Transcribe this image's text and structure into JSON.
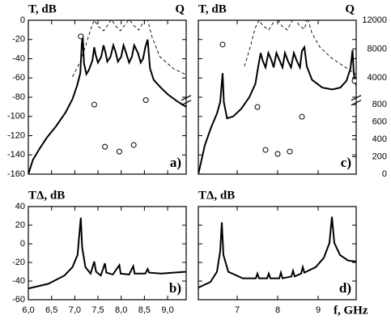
{
  "chart_data": [
    {
      "type": "line",
      "panel_label": "a)",
      "ylabel": "T, dB",
      "y2label": "Q",
      "xlim": [
        6.0,
        9.4
      ],
      "xticks": [
        6,
        6.5,
        7,
        7.5,
        8,
        8.5,
        9
      ],
      "xtick_labels": false,
      "ylim": [
        -160,
        0
      ],
      "yticks": [
        0,
        -20,
        -40,
        -60,
        -80,
        -100,
        -120,
        -140,
        -160
      ],
      "y2lim": [
        0,
        12000
      ],
      "y2break": 850,
      "series": [
        {
          "style": "solid",
          "color": "#000000",
          "x": [
            6.0,
            6.1,
            6.25,
            6.4,
            6.6,
            6.8,
            6.95,
            7.05,
            7.12,
            7.15,
            7.17,
            7.2,
            7.25,
            7.3,
            7.38,
            7.42,
            7.45,
            7.5,
            7.57,
            7.62,
            7.66,
            7.7,
            7.77,
            7.83,
            7.88,
            7.93,
            8.0,
            8.05,
            8.1,
            8.17,
            8.23,
            8.28,
            8.36,
            8.42,
            8.47,
            8.52,
            8.57,
            8.62,
            8.7,
            8.85,
            9.0,
            9.2,
            9.4
          ],
          "values": [
            -160,
            -145,
            -133,
            -122,
            -110,
            -96,
            -82,
            -68,
            -55,
            -25,
            -15,
            -45,
            -56,
            -52,
            -42,
            -28,
            -36,
            -44,
            -38,
            -26,
            -33,
            -43,
            -38,
            -26,
            -33,
            -43,
            -38,
            -26,
            -33,
            -44,
            -38,
            -26,
            -34,
            -44,
            -40,
            -28,
            -20,
            -50,
            -62,
            -70,
            -77,
            -84,
            -90
          ]
        },
        {
          "style": "dashed",
          "axis": "y2",
          "color": "#000000",
          "x": [
            6.95,
            7.13,
            7.27,
            7.35,
            7.42,
            7.51,
            7.62,
            7.72,
            7.79,
            7.88,
            7.98,
            8.09,
            8.17,
            8.28,
            8.38,
            8.47,
            8.56,
            8.66,
            8.83,
            9.13,
            9.39
          ],
          "values": [
            4120,
            6370,
            9180,
            10870,
            12000,
            11100,
            10530,
            11430,
            12110,
            11210,
            10530,
            11430,
            12110,
            11210,
            10650,
            11660,
            12340,
            9740,
            6930,
            5240,
            4450
          ]
        },
        {
          "style": "markers",
          "axis": "y2",
          "color": "#000000",
          "x": [
            7.13,
            7.42,
            7.65,
            7.96,
            8.27,
            8.53
          ],
          "values": [
            9750,
            800,
            316,
            260,
            335,
            870
          ]
        }
      ]
    },
    {
      "type": "line",
      "panel_label": "b)",
      "ylabel": "TΔ, dB",
      "xlim": [
        6.0,
        9.4
      ],
      "xticks": [
        {
          "value": 6,
          "label": "6,0"
        },
        {
          "value": 6.5,
          "label": "6,5"
        },
        {
          "value": 7,
          "label": "7,0"
        },
        {
          "value": 7.5,
          "label": "7,5"
        },
        {
          "value": 8,
          "label": "8,0"
        },
        {
          "value": 8.5,
          "label": "8,5"
        },
        {
          "value": 9,
          "label": "9,0"
        }
      ],
      "ylim": [
        -60,
        40
      ],
      "yticks": [
        40,
        20,
        0,
        -20,
        -40,
        -60
      ],
      "series": [
        {
          "style": "solid",
          "color": "#000000",
          "x": [
            6.0,
            6.43,
            6.78,
            6.95,
            7.06,
            7.13,
            7.16,
            7.23,
            7.34,
            7.42,
            7.46,
            7.56,
            7.65,
            7.68,
            7.82,
            7.96,
            7.99,
            8.17,
            8.26,
            8.29,
            8.52,
            8.57,
            8.6,
            8.86,
            9.39
          ],
          "values": [
            -48,
            -43,
            -34,
            -25,
            -12,
            28,
            -4,
            -25,
            -32,
            -19,
            -30,
            -34,
            -21,
            -31,
            -33,
            -23,
            -32,
            -33,
            -24,
            -32,
            -32,
            -27,
            -31,
            -32,
            -30
          ]
        }
      ]
    },
    {
      "type": "line",
      "panel_label": "c)",
      "ylabel": "T, dB",
      "y2label": "Q",
      "xlim": [
        6.04,
        9.94
      ],
      "xticks": [
        7,
        8,
        9
      ],
      "xtick_labels": false,
      "ylim": [
        -160,
        0
      ],
      "yticks": [
        0,
        -20,
        -40,
        -60,
        -80,
        -100,
        -120,
        -140,
        -160
      ],
      "ytick_labels": false,
      "y2lim": [
        0,
        12000
      ],
      "y2break": 850,
      "y2ticks": [
        12000,
        8000,
        4000,
        800,
        600,
        400,
        200,
        0
      ],
      "series": [
        {
          "style": "solid",
          "color": "#000000",
          "x": [
            6.04,
            6.2,
            6.35,
            6.5,
            6.58,
            6.62,
            6.64,
            6.67,
            6.75,
            6.9,
            7.1,
            7.3,
            7.45,
            7.52,
            7.58,
            7.63,
            7.7,
            7.77,
            7.85,
            7.9,
            7.97,
            8.05,
            8.12,
            8.18,
            8.25,
            8.33,
            8.4,
            8.47,
            8.55,
            8.6,
            8.66,
            8.72,
            8.85,
            9.1,
            9.35,
            9.55,
            9.7,
            9.8,
            9.85,
            9.88,
            9.92,
            9.95
          ],
          "values": [
            -160,
            -130,
            -112,
            -97,
            -85,
            -65,
            -55,
            -85,
            -102,
            -100,
            -92,
            -80,
            -66,
            -48,
            -34,
            -42,
            -49,
            -34,
            -42,
            -49,
            -34,
            -42,
            -49,
            -34,
            -42,
            -49,
            -34,
            -42,
            -49,
            -32,
            -28,
            -48,
            -62,
            -70,
            -72,
            -70,
            -63,
            -50,
            -31,
            -55,
            -65,
            -68
          ]
        },
        {
          "style": "dashed",
          "axis": "y2",
          "color": "#000000",
          "x": [
            7.18,
            7.34,
            7.44,
            7.54,
            7.64,
            7.78,
            7.9,
            7.98,
            8.1,
            8.24,
            8.34,
            8.42,
            8.54,
            8.66,
            8.74,
            8.84,
            9.04,
            9.34,
            9.64,
            9.94
          ],
          "values": [
            5580,
            8620,
            10870,
            12000,
            11210,
            10650,
            11770,
            12340,
            11210,
            10650,
            11770,
            12340,
            11210,
            10760,
            12340,
            10310,
            8280,
            6700,
            5580,
            4450
          ]
        },
        {
          "style": "markers",
          "axis": "y2",
          "color": "#000000",
          "x": [
            6.64,
            7.5,
            7.7,
            8.0,
            8.3,
            8.6,
            9.9
          ],
          "values": [
            8620,
            772,
            279,
            233,
            260,
            660,
            3550
          ]
        }
      ]
    },
    {
      "type": "line",
      "panel_label": "d)",
      "ylabel": "TΔ, dB",
      "xlabel": "f, GHz",
      "xlim": [
        6.04,
        9.94
      ],
      "xticks": [
        7,
        8,
        9
      ],
      "ylim": [
        -60,
        40
      ],
      "yticks": [
        40,
        20,
        0,
        -20,
        -40,
        -60
      ],
      "ytick_labels": false,
      "series": [
        {
          "style": "solid",
          "color": "#000000",
          "x": [
            6.04,
            6.34,
            6.5,
            6.58,
            6.62,
            6.66,
            6.78,
            7.14,
            7.46,
            7.5,
            7.54,
            7.74,
            7.78,
            7.82,
            8.04,
            8.08,
            8.12,
            8.34,
            8.38,
            8.42,
            8.58,
            8.62,
            8.66,
            8.94,
            9.14,
            9.28,
            9.34,
            9.4,
            9.54,
            9.74,
            9.94
          ],
          "values": [
            -47,
            -41,
            -30,
            -8,
            23,
            -12,
            -30,
            -37,
            -37,
            -32,
            -37,
            -37,
            -32,
            -37,
            -37,
            -31,
            -37,
            -35,
            -29,
            -35,
            -32,
            -25,
            -31,
            -25,
            -15,
            1,
            29,
            1,
            -12,
            -18,
            -19
          ]
        }
      ]
    }
  ]
}
